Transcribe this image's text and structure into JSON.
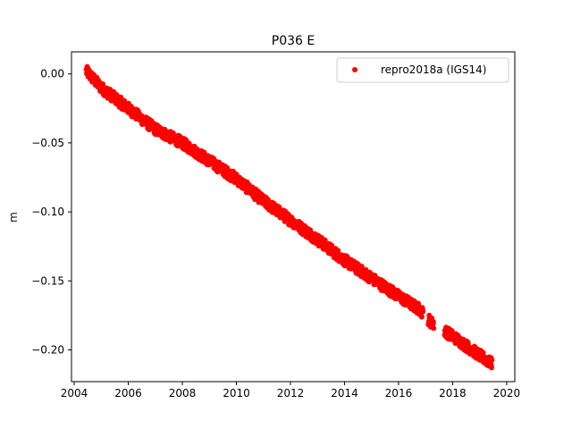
{
  "chart_data": {
    "type": "scatter",
    "title": "P036 E",
    "xlabel": "",
    "ylabel": "m",
    "xlim": [
      2003.9,
      2020.3
    ],
    "ylim": [
      -0.223,
      0.016
    ],
    "xticks": [
      2004,
      2006,
      2008,
      2010,
      2012,
      2014,
      2016,
      2018,
      2020
    ],
    "xtick_labels": [
      "2004",
      "2006",
      "2008",
      "2010",
      "2012",
      "2014",
      "2016",
      "2018",
      "2020"
    ],
    "yticks": [
      0.0,
      -0.05,
      -0.1,
      -0.15,
      -0.2
    ],
    "ytick_labels": [
      "0.00",
      "−0.05",
      "−0.10",
      "−0.15",
      "−0.20"
    ],
    "grid": false,
    "legend_position": "top-right",
    "series": [
      {
        "name": "repro2018a (IGS14)",
        "color": "#ff0000",
        "marker": "circle",
        "trend_points": [
          {
            "x": 2004.45,
            "y": 0.002
          },
          {
            "x": 2005.0,
            "y": -0.01
          },
          {
            "x": 2006.0,
            "y": -0.025
          },
          {
            "x": 2007.0,
            "y": -0.04
          },
          {
            "x": 2008.0,
            "y": -0.05
          },
          {
            "x": 2009.0,
            "y": -0.063
          },
          {
            "x": 2010.0,
            "y": -0.076
          },
          {
            "x": 2011.0,
            "y": -0.092
          },
          {
            "x": 2012.0,
            "y": -0.106
          },
          {
            "x": 2013.0,
            "y": -0.12
          },
          {
            "x": 2014.0,
            "y": -0.135
          },
          {
            "x": 2015.0,
            "y": -0.148
          },
          {
            "x": 2016.0,
            "y": -0.161
          },
          {
            "x": 2016.8,
            "y": -0.171
          },
          {
            "x": 2017.2,
            "y": -0.18
          },
          {
            "x": 2018.0,
            "y": -0.19
          },
          {
            "x": 2019.0,
            "y": -0.204
          },
          {
            "x": 2019.45,
            "y": -0.21
          }
        ],
        "gaps": [
          [
            2016.9,
            2017.1
          ],
          [
            2017.3,
            2017.7
          ]
        ]
      }
    ]
  }
}
